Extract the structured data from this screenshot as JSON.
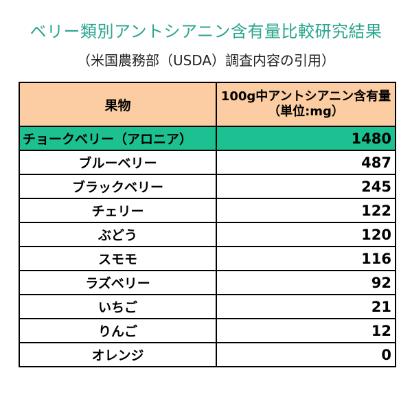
{
  "title": "ベリー類別アントシアニン含有量比較研究結果",
  "subtitle": "（米国農務部（USDA）調査内容の引用）",
  "colors": {
    "title": "#2aa58f",
    "header_bg": "#fccda2",
    "highlight_bg": "#1dc090",
    "border": "#000000"
  },
  "chart_data": {
    "type": "table",
    "title": "ベリー類別アントシアニン含有量比較研究結果",
    "subtitle": "（米国農務部（USDA）調査内容の引用）",
    "columns": [
      "果物",
      "100g中アントシアニン含有量（単位:mg）"
    ],
    "rows": [
      {
        "fruit": "チョークベリー（アロニア）",
        "value": "1480",
        "highlight": true
      },
      {
        "fruit": "ブルーベリー",
        "value": "487",
        "highlight": false
      },
      {
        "fruit": "ブラックベリー",
        "value": "245",
        "highlight": false
      },
      {
        "fruit": "チェリー",
        "value": "122",
        "highlight": false
      },
      {
        "fruit": "ぶどう",
        "value": "120",
        "highlight": false
      },
      {
        "fruit": "スモモ",
        "value": "116",
        "highlight": false
      },
      {
        "fruit": "ラズベリー",
        "value": "92",
        "highlight": false
      },
      {
        "fruit": "いちご",
        "value": "21",
        "highlight": false
      },
      {
        "fruit": "りんご",
        "value": "12",
        "highlight": false
      },
      {
        "fruit": "オレンジ",
        "value": "0",
        "highlight": false
      }
    ]
  }
}
